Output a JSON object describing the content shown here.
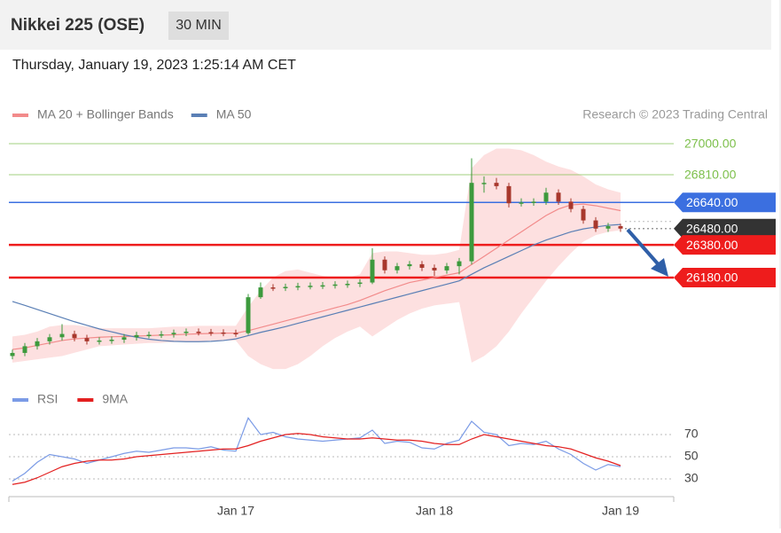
{
  "header": {
    "title": "Nikkei 225 (OSE)",
    "interval": "30 MIN",
    "datetime": "Thursday, January 19, 2023 1:25:14 AM CET"
  },
  "chart_data": {
    "type": "candlestick",
    "credit": "Research © 2023 Trading Central",
    "categories": [
      null,
      null,
      null,
      null,
      null,
      null,
      null,
      null,
      null,
      null,
      null,
      null,
      null,
      null,
      null,
      null,
      null,
      null,
      "Jan 17",
      null,
      null,
      null,
      null,
      null,
      null,
      null,
      null,
      null,
      null,
      null,
      null,
      null,
      null,
      null,
      "Jan 18",
      null,
      null,
      null,
      null,
      null,
      null,
      null,
      null,
      null,
      null,
      null,
      null,
      null,
      null,
      "Jan 19"
    ],
    "ylim": [
      25545,
      27065
    ],
    "up_color": "#3d9a3d",
    "down_color": "#a8372c",
    "open": [
      25700,
      25719,
      25760,
      25790,
      25815,
      25835,
      25810,
      25790,
      25795,
      25800,
      25815,
      25828,
      25830,
      25833,
      25842,
      25849,
      25846,
      25844,
      25841,
      25840,
      26060,
      26120,
      26118,
      26123,
      26128,
      26130,
      26133,
      26138,
      26142,
      26150,
      26290,
      26225,
      26250,
      26262,
      26240,
      26224,
      26250,
      26280,
      26760,
      26760,
      26740,
      26635,
      26640,
      26645,
      26700,
      26645,
      26600,
      26530,
      26480,
      26495
    ],
    "high": [
      25739,
      25780,
      25810,
      25835,
      25895,
      25855,
      25830,
      25815,
      25820,
      25835,
      25848,
      25850,
      25853,
      25862,
      25869,
      25869,
      25866,
      25864,
      25861,
      26080,
      26150,
      26140,
      26143,
      26148,
      26150,
      26153,
      26158,
      26162,
      26170,
      26360,
      26310,
      26270,
      26282,
      26282,
      26260,
      26270,
      26300,
      26910,
      26800,
      26790,
      26760,
      26665,
      26665,
      26730,
      26720,
      26665,
      26620,
      26550,
      26515,
      26510
    ],
    "low": [
      25680,
      25699,
      25740,
      25770,
      25795,
      25790,
      25770,
      25770,
      25775,
      25780,
      25795,
      25808,
      25810,
      25813,
      25822,
      25826,
      25824,
      25821,
      25818,
      25830,
      26050,
      26098,
      26098,
      26103,
      26108,
      26110,
      26113,
      26118,
      26122,
      26140,
      26205,
      26205,
      26230,
      26220,
      26190,
      26204,
      26200,
      26260,
      26700,
      26720,
      26610,
      26615,
      26620,
      26625,
      26625,
      26580,
      26510,
      26460,
      26460,
      26460
    ],
    "close": [
      25719,
      25760,
      25790,
      25815,
      25835,
      25810,
      25790,
      25795,
      25800,
      25815,
      25828,
      25830,
      25833,
      25842,
      25849,
      25846,
      25844,
      25841,
      25838,
      26060,
      26120,
      26118,
      26123,
      26128,
      26130,
      26133,
      26138,
      26142,
      26150,
      26290,
      26225,
      26250,
      26262,
      26240,
      26224,
      26250,
      26280,
      26760,
      26760,
      26740,
      26635,
      26640,
      26645,
      26700,
      26645,
      26600,
      26530,
      26480,
      26495,
      26480
    ],
    "overlays": [
      {
        "name": "MA 20 + Bollinger Bands",
        "color": "#f28b8b",
        "band_color": "#fde0e0",
        "values": [
          25740,
          25750,
          25765,
          25780,
          25795,
          25805,
          25810,
          25815,
          25818,
          25820,
          25822,
          25825,
          25828,
          25830,
          25833,
          25836,
          25838,
          25840,
          25840,
          25855,
          25875,
          25895,
          25915,
          25935,
          25955,
          25975,
          25995,
          26015,
          26040,
          26070,
          26100,
          26125,
          26150,
          26165,
          26180,
          26195,
          26210,
          26260,
          26310,
          26360,
          26410,
          26460,
          26510,
          26560,
          26600,
          26625,
          26630,
          26620,
          26605,
          26590
        ],
        "upper": [
          25820,
          25830,
          25850,
          25880,
          25890,
          25890,
          25880,
          25870,
          25870,
          25870,
          25870,
          25870,
          25875,
          25880,
          25880,
          25885,
          25885,
          25885,
          25885,
          26000,
          26100,
          26180,
          26220,
          26230,
          26210,
          26190,
          26180,
          26180,
          26200,
          26330,
          26340,
          26340,
          26330,
          26320,
          26320,
          26330,
          26350,
          26850,
          26930,
          26970,
          26970,
          26960,
          26930,
          26890,
          26860,
          26840,
          26800,
          26750,
          26720,
          26700
        ],
        "lower": [
          25660,
          25670,
          25680,
          25690,
          25700,
          25720,
          25740,
          25760,
          25765,
          25770,
          25775,
          25780,
          25780,
          25785,
          25790,
          25790,
          25795,
          25795,
          25795,
          25700,
          25650,
          25620,
          25620,
          25650,
          25700,
          25760,
          25810,
          25850,
          25880,
          25820,
          25870,
          25920,
          25960,
          25990,
          26010,
          26020,
          26030,
          25660,
          25700,
          25760,
          25850,
          25960,
          26060,
          26160,
          26250,
          26330,
          26400,
          26440,
          26460,
          26470
        ]
      },
      {
        "name": "MA 50",
        "color": "#5a7fb5",
        "values": [
          26034,
          26010,
          25985,
          25960,
          25935,
          25910,
          25888,
          25866,
          25848,
          25830,
          25815,
          25803,
          25795,
          25790,
          25788,
          25788,
          25790,
          25795,
          25805,
          25825,
          25845,
          25862,
          25880,
          25900,
          25920,
          25940,
          25960,
          25980,
          26000,
          26020,
          26040,
          26060,
          26080,
          26100,
          26120,
          26140,
          26160,
          26200,
          26240,
          26275,
          26310,
          26345,
          26380,
          26410,
          26435,
          26460,
          26478,
          26490,
          26500,
          26505
        ]
      }
    ],
    "levels": [
      {
        "value": 27000,
        "label": "27000.00",
        "color": "#7cbf4a",
        "tag": false
      },
      {
        "value": 26810,
        "label": "26810.00",
        "color": "#7cbf4a",
        "tag": false
      },
      {
        "value": 26640,
        "label": "26640.00",
        "color": "#3b6fe0",
        "tag": true
      },
      {
        "value": 26480,
        "label": "26480.00",
        "color": "#333333",
        "tag": true
      },
      {
        "value": 26380,
        "label": "26380.00",
        "color": "#ee1c1c",
        "tag": true
      },
      {
        "value": 26180,
        "label": "26180.00",
        "color": "#ee1c1c",
        "tag": true
      }
    ],
    "rsi": {
      "ylim": [
        20,
        90
      ],
      "yticks": [
        70,
        50,
        30
      ],
      "series": [
        {
          "name": "RSI",
          "color": "#7b9be6",
          "values": [
            28,
            35,
            45,
            52,
            50,
            48,
            44,
            47,
            50,
            53,
            55,
            54,
            56,
            58,
            58,
            57,
            59,
            56,
            55,
            85,
            70,
            72,
            68,
            66,
            65,
            64,
            65,
            66,
            67,
            74,
            62,
            64,
            63,
            58,
            57,
            62,
            65,
            82,
            72,
            70,
            60,
            62,
            61,
            64,
            57,
            52,
            44,
            38,
            43,
            41
          ]
        },
        {
          "name": "9MA",
          "color": "#e32020",
          "values": [
            25,
            27,
            31,
            36,
            41,
            44,
            46,
            47,
            47,
            48,
            50,
            51,
            52,
            53,
            54,
            55,
            56,
            57,
            57,
            60,
            64,
            67,
            70,
            71,
            70,
            68,
            67,
            66,
            66,
            67,
            66,
            65,
            65,
            64,
            62,
            61,
            61,
            66,
            70,
            68,
            66,
            64,
            62,
            60,
            59,
            57,
            53,
            49,
            46,
            42
          ]
        }
      ]
    }
  }
}
